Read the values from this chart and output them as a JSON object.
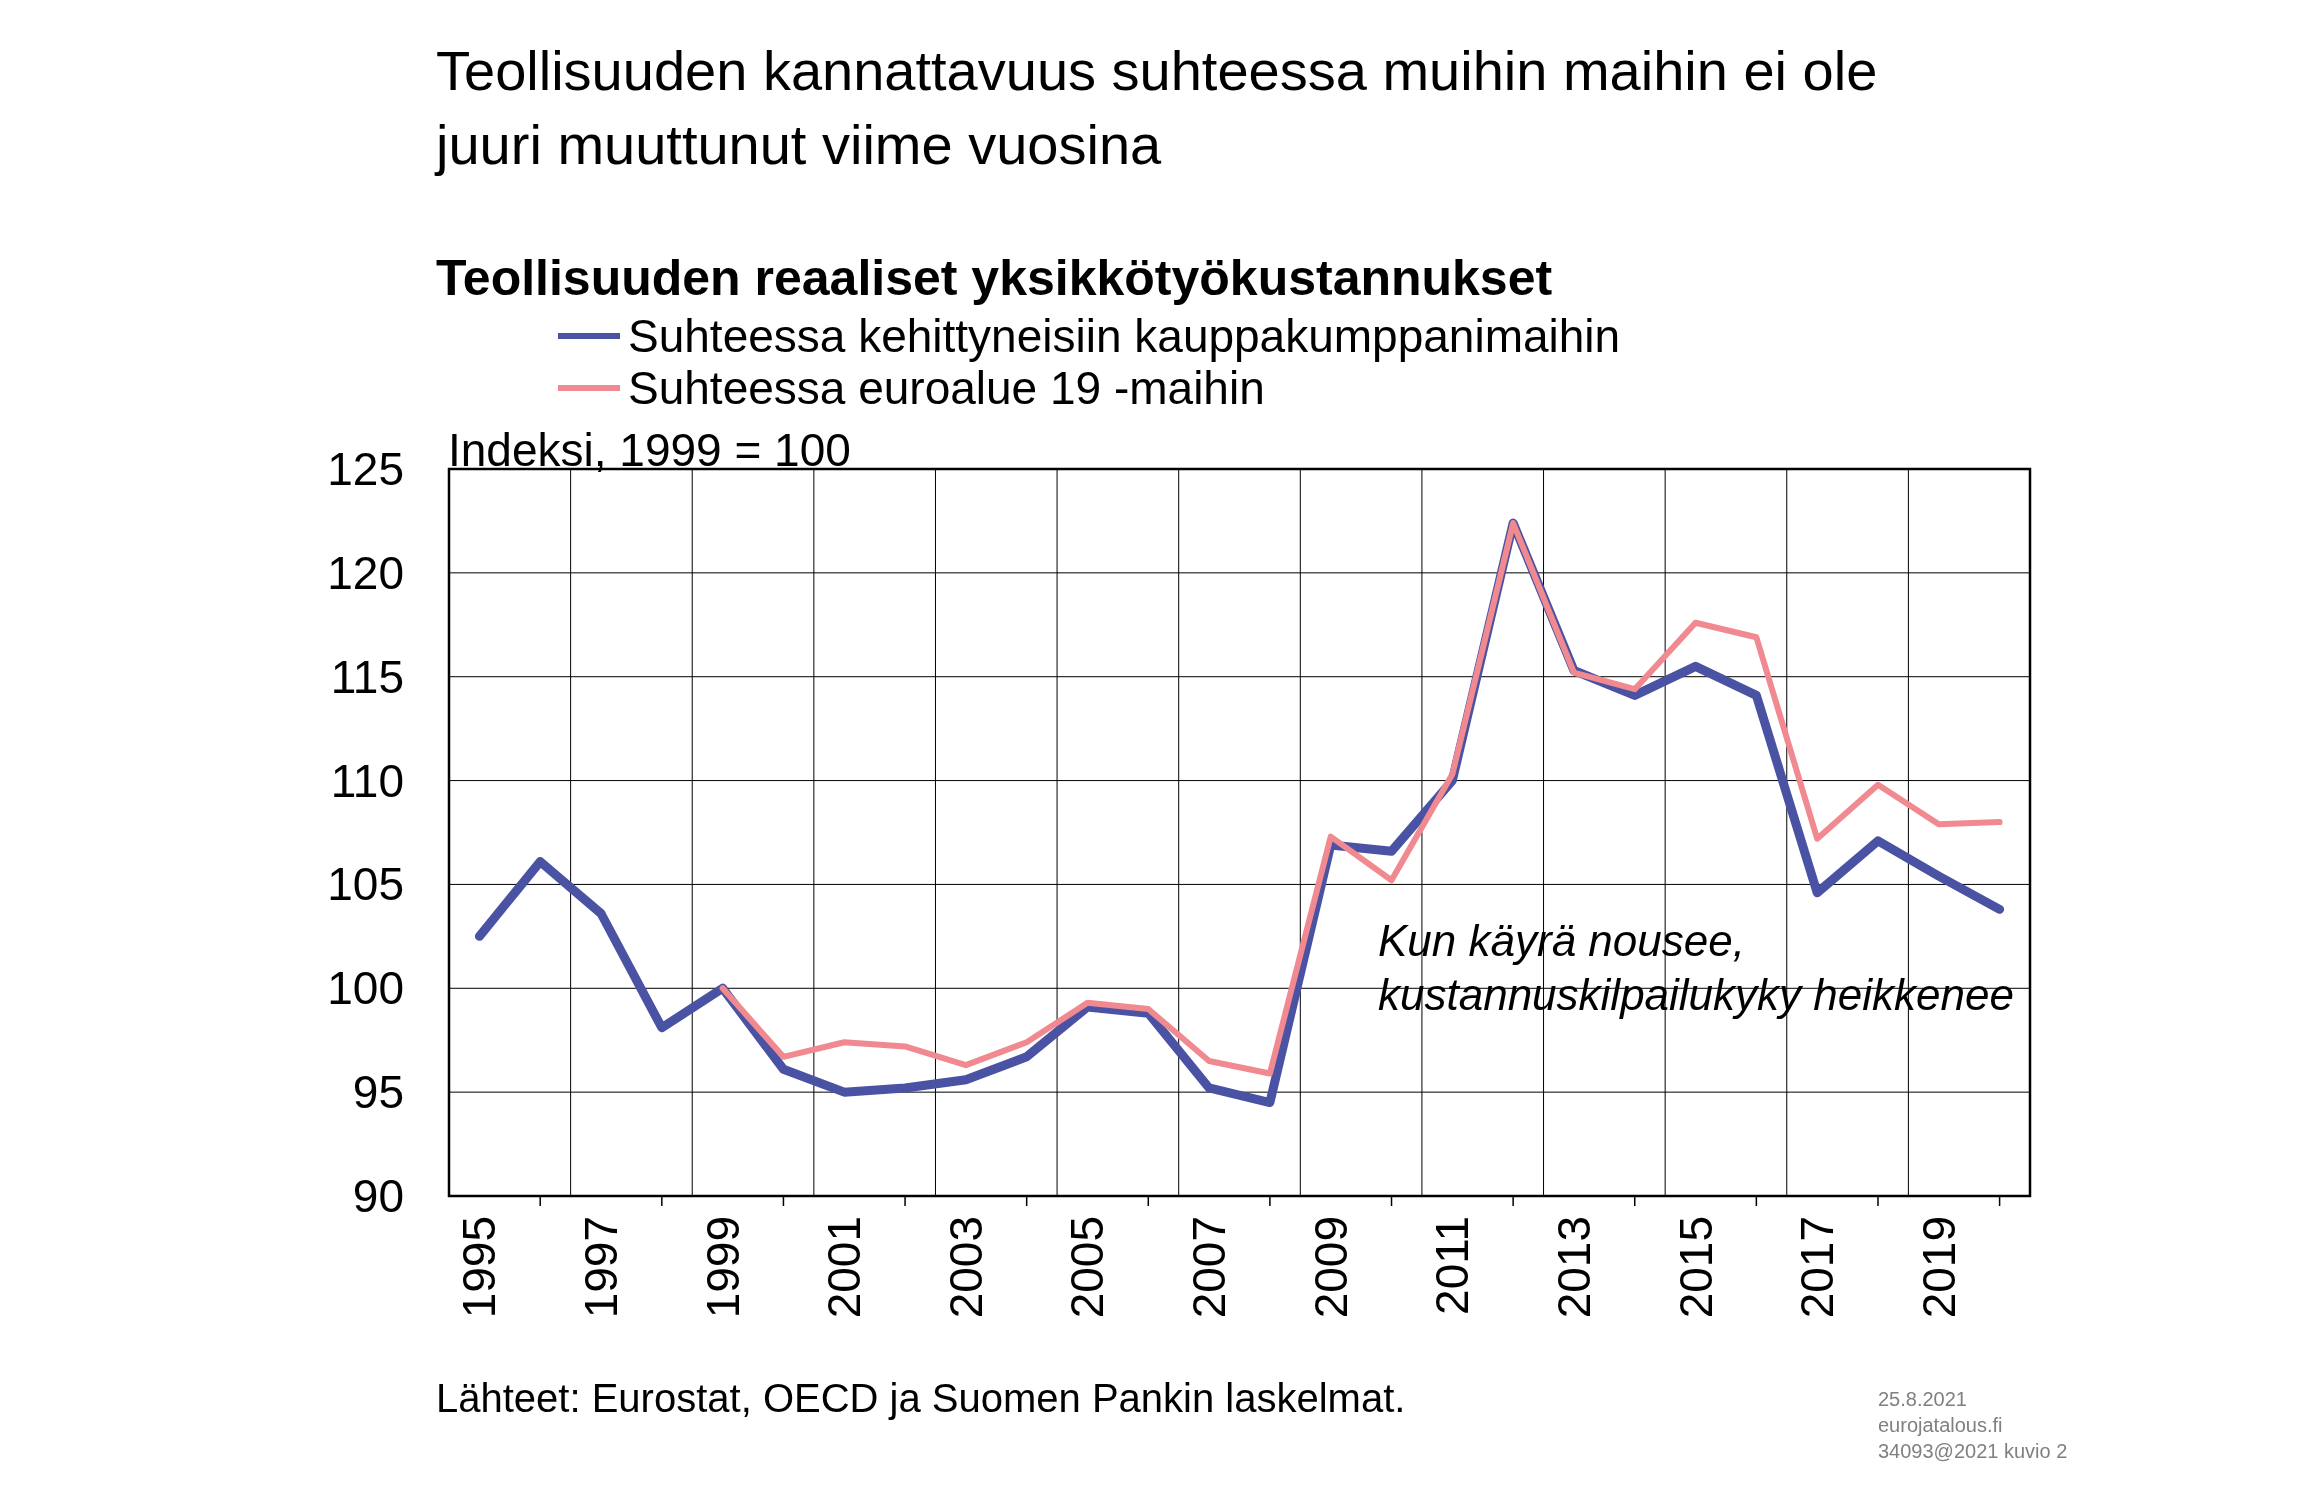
{
  "chart_data": {
    "type": "line",
    "title": "Teollisuuden kannattavuus suhteessa muihin maihin ei ole juuri muuttunut viime vuosina",
    "subtitle": "Teollisuuden reaaliset yksikkötyökustannukset",
    "ylabel": "Indeksi, 1999 = 100",
    "categories": [
      "1995",
      null,
      "1997",
      null,
      "1999",
      null,
      "2001",
      null,
      "2003",
      null,
      "2005",
      null,
      "2007",
      null,
      "2009",
      null,
      "2011",
      null,
      "2013",
      null,
      "2015",
      null,
      "2017",
      null,
      "2019",
      null
    ],
    "series": [
      {
        "name": "Suhteessa kehittyneisiin kauppakumppanimaihin",
        "color": "#4a52a3",
        "values": [
          102.5,
          106.1,
          103.6,
          98.1,
          100,
          96.1,
          95.0,
          95.2,
          95.6,
          96.7,
          99.1,
          98.8,
          95.2,
          94.5,
          106.9,
          106.6,
          110.0,
          122.4,
          115.3,
          114.1,
          115.5,
          114.1,
          104.6,
          107.1,
          105.4,
          103.8
        ]
      },
      {
        "name": "Suhteessa euroalue 19 -maihin",
        "color": "#f08a90",
        "values": [
          null,
          null,
          null,
          null,
          100,
          96.7,
          97.4,
          97.2,
          96.3,
          97.4,
          99.3,
          99.0,
          96.5,
          95.9,
          107.3,
          105.2,
          110.3,
          122.4,
          115.2,
          114.4,
          117.6,
          116.9,
          107.2,
          109.8,
          107.9,
          108.0
        ]
      }
    ],
    "ylim": [
      90,
      125
    ],
    "yticks": [
      90,
      95,
      100,
      105,
      110,
      115,
      120,
      125
    ],
    "grid": true,
    "legend": "top",
    "line_style": "solid",
    "marker": "none",
    "annotations": [
      "Kun käyrä nousee,\nkustannuskilpailukyky heikkenee",
      "Lähteet: Eurostat, OECD ja Suomen Pankin laskelmat.",
      "25.8.2021",
      "eurojatalous.fi",
      "34093@2021  kuvio 2"
    ]
  }
}
